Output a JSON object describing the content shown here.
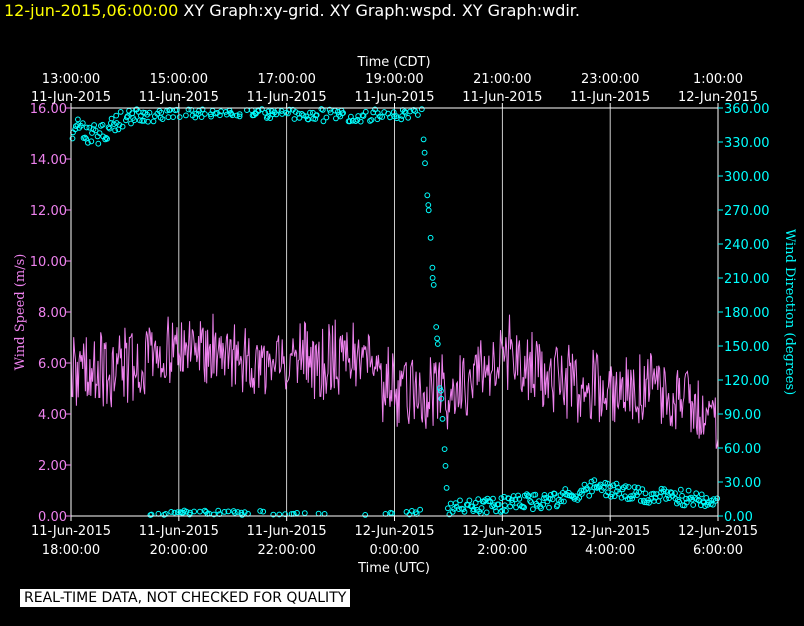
{
  "header": {
    "timestamp": "12-jun-2015,06:00:00",
    "graphs": "XY Graph:xy-grid.  XY Graph:wspd.  XY Graph:wdir."
  },
  "footer": {
    "note": "REAL-TIME DATA, NOT CHECKED FOR QUALITY"
  },
  "colors": {
    "background": "#000000",
    "axis": "#ffffff",
    "grid": "#ffffff",
    "speed": "#ee82ee",
    "direction": "#00ffff",
    "title_time": "#ffff00"
  },
  "chart_data": {
    "type": "line",
    "top_axis": {
      "title": "Time (CDT)",
      "ticks": [
        {
          "time": "13:00:00",
          "date": "11-Jun-2015"
        },
        {
          "time": "15:00:00",
          "date": "11-Jun-2015"
        },
        {
          "time": "17:00:00",
          "date": "11-Jun-2015"
        },
        {
          "time": "19:00:00",
          "date": "11-Jun-2015"
        },
        {
          "time": "21:00:00",
          "date": "11-Jun-2015"
        },
        {
          "time": "23:00:00",
          "date": "11-Jun-2015"
        },
        {
          "time": "1:00:00",
          "date": "12-Jun-2015"
        }
      ]
    },
    "bottom_axis": {
      "title": "Time (UTC)",
      "range": [
        "2015-06-11T18:00:00Z",
        "2015-06-12T06:00:00Z"
      ],
      "ticks": [
        {
          "date": "11-Jun-2015",
          "time": "18:00:00"
        },
        {
          "date": "11-Jun-2015",
          "time": "20:00:00"
        },
        {
          "date": "11-Jun-2015",
          "time": "22:00:00"
        },
        {
          "date": "12-Jun-2015",
          "time": "0:00:00"
        },
        {
          "date": "12-Jun-2015",
          "time": "2:00:00"
        },
        {
          "date": "12-Jun-2015",
          "time": "4:00:00"
        },
        {
          "date": "12-Jun-2015",
          "time": "6:00:00"
        }
      ]
    },
    "left_axis": {
      "label": "Wind Speed (m/s)",
      "range": [
        0,
        16
      ],
      "ticks": [
        "0.00",
        "2.00",
        "4.00",
        "6.00",
        "8.00",
        "10.00",
        "12.00",
        "14.00",
        "16.00"
      ]
    },
    "right_axis": {
      "label": "Wind Direction (degrees)",
      "range": [
        0,
        360
      ],
      "ticks": [
        "0.00",
        "30.00",
        "60.00",
        "90.00",
        "120.00",
        "150.00",
        "180.00",
        "210.00",
        "240.00",
        "270.00",
        "300.00",
        "330.00",
        "360.00"
      ]
    },
    "grid": "vertical lines at each 2-hour tick",
    "series": [
      {
        "kind": "line",
        "axis": "left",
        "x": [
          "2015-06-11T18:00:00Z",
          "2015-06-11T19:00:00Z",
          "2015-06-11T20:00:00Z",
          "2015-06-11T21:00:00Z",
          "2015-06-11T22:00:00Z",
          "2015-06-11T23:00:00Z",
          "2015-06-12T00:00:00Z",
          "2015-06-12T01:00:00Z",
          "2015-06-12T02:00:00Z",
          "2015-06-12T03:00:00Z",
          "2015-06-12T04:00:00Z",
          "2015-06-12T05:00:00Z",
          "2015-06-12T06:00:00Z"
        ],
        "values": [
          5.6,
          5.8,
          6.6,
          6.2,
          6.0,
          6.3,
          5.0,
          4.8,
          6.4,
          5.4,
          5.0,
          4.9,
          3.7
        ],
        "variability": 1.3
      },
      {
        "kind": "scatter",
        "axis": "right",
        "x": [
          "2015-06-11T18:00:00Z",
          "2015-06-11T18:30:00Z",
          "2015-06-11T19:00:00Z",
          "2015-06-11T20:00:00Z",
          "2015-06-11T21:00:00Z",
          "2015-06-11T22:00:00Z",
          "2015-06-11T23:00:00Z",
          "2015-06-12T00:00:00Z",
          "2015-06-12T00:30:00Z",
          "2015-06-12T01:00:00Z",
          "2015-06-12T02:00:00Z",
          "2015-06-12T03:00:00Z",
          "2015-06-12T03:45:00Z",
          "2015-06-12T04:30:00Z",
          "2015-06-12T06:00:00Z"
        ],
        "values": [
          342,
          336,
          352,
          358,
          358,
          357,
          354,
          356,
          359,
          6,
          10,
          15,
          26,
          18,
          15
        ]
      }
    ]
  }
}
